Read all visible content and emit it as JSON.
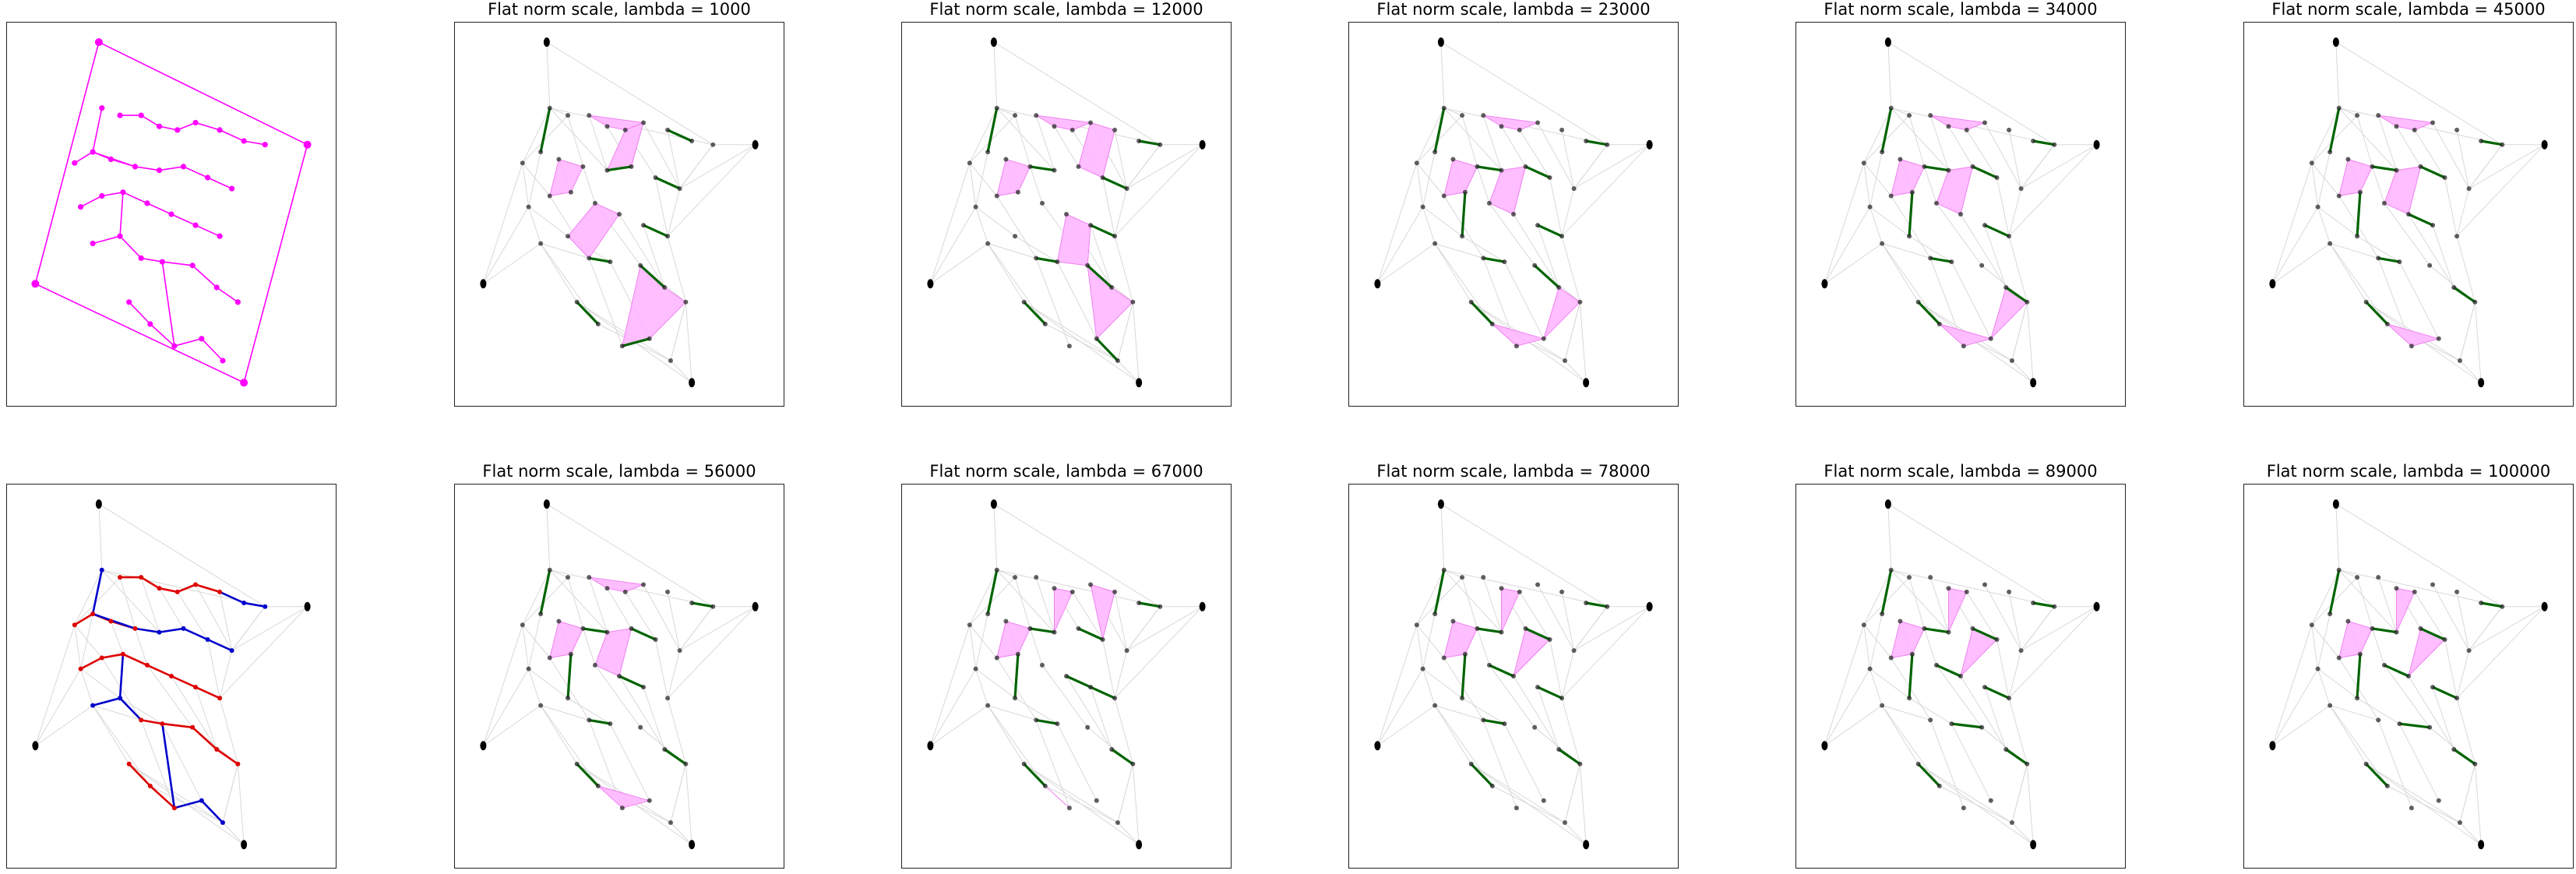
{
  "figure": {
    "layout": "2 rows x 6 columns of small multiples",
    "grid": false
  },
  "colors": {
    "outline": "#ff00ff",
    "fill": "#ffb3ff",
    "tree_edge": "#006400",
    "mesh": "#d9d9d9",
    "vertex": "#2b2b2b",
    "red_path": "#dd0000",
    "blue_path": "#0000cc"
  },
  "panels": [
    {
      "id": "input",
      "title": "",
      "style": "input"
    },
    {
      "id": "l1000",
      "title": "Flat norm scale, lambda = 1000",
      "style": "result",
      "lambda": 1000
    },
    {
      "id": "l12000",
      "title": "Flat norm scale, lambda = 12000",
      "style": "result",
      "lambda": 12000
    },
    {
      "id": "l23000",
      "title": "Flat norm scale, lambda = 23000",
      "style": "result",
      "lambda": 23000
    },
    {
      "id": "l34000",
      "title": "Flat norm scale, lambda = 34000",
      "style": "result",
      "lambda": 34000
    },
    {
      "id": "l45000",
      "title": "Flat norm scale, lambda = 45000",
      "style": "result",
      "lambda": 45000
    },
    {
      "id": "paths",
      "title": "",
      "style": "paths"
    },
    {
      "id": "l56000",
      "title": "Flat norm scale, lambda = 56000",
      "style": "result",
      "lambda": 56000
    },
    {
      "id": "l67000",
      "title": "Flat norm scale, lambda = 67000",
      "style": "result",
      "lambda": 67000
    },
    {
      "id": "l78000",
      "title": "Flat norm scale, lambda = 78000",
      "style": "result",
      "lambda": 78000
    },
    {
      "id": "l89000",
      "title": "Flat norm scale, lambda = 89000",
      "style": "result",
      "lambda": 89000
    },
    {
      "id": "l100000",
      "title": "Flat norm scale, lambda = 100000",
      "style": "result",
      "lambda": 100000
    }
  ],
  "chart_data": {
    "type": "scatter",
    "title": "",
    "lambdas": [
      1000,
      12000,
      23000,
      34000,
      45000,
      56000,
      67000,
      78000,
      89000,
      100000
    ],
    "corner_points": [
      [
        0.26,
        0.03
      ],
      [
        0.95,
        0.31
      ],
      [
        0.74,
        0.96
      ],
      [
        0.05,
        0.69
      ]
    ],
    "network_points": [
      [
        0.27,
        0.21
      ],
      [
        0.33,
        0.23
      ],
      [
        0.4,
        0.23
      ],
      [
        0.46,
        0.26
      ],
      [
        0.52,
        0.27
      ],
      [
        0.58,
        0.25
      ],
      [
        0.66,
        0.27
      ],
      [
        0.74,
        0.3
      ],
      [
        0.81,
        0.31
      ],
      [
        0.18,
        0.36
      ],
      [
        0.24,
        0.33
      ],
      [
        0.3,
        0.35
      ],
      [
        0.38,
        0.37
      ],
      [
        0.46,
        0.38
      ],
      [
        0.54,
        0.37
      ],
      [
        0.62,
        0.4
      ],
      [
        0.7,
        0.43
      ],
      [
        0.2,
        0.48
      ],
      [
        0.27,
        0.45
      ],
      [
        0.34,
        0.44
      ],
      [
        0.42,
        0.47
      ],
      [
        0.5,
        0.5
      ],
      [
        0.58,
        0.53
      ],
      [
        0.66,
        0.56
      ],
      [
        0.24,
        0.58
      ],
      [
        0.33,
        0.56
      ],
      [
        0.4,
        0.62
      ],
      [
        0.47,
        0.63
      ],
      [
        0.57,
        0.64
      ],
      [
        0.65,
        0.7
      ],
      [
        0.72,
        0.74
      ],
      [
        0.36,
        0.74
      ],
      [
        0.43,
        0.8
      ],
      [
        0.51,
        0.86
      ],
      [
        0.6,
        0.84
      ],
      [
        0.67,
        0.9
      ]
    ],
    "red_edges": [
      [
        1,
        2
      ],
      [
        2,
        3
      ],
      [
        3,
        4
      ],
      [
        4,
        5
      ],
      [
        5,
        6
      ],
      [
        9,
        10
      ],
      [
        10,
        11
      ],
      [
        11,
        12
      ],
      [
        17,
        18
      ],
      [
        18,
        19
      ],
      [
        19,
        20
      ],
      [
        20,
        21
      ],
      [
        21,
        22
      ],
      [
        22,
        23
      ],
      [
        26,
        27
      ],
      [
        27,
        28
      ],
      [
        31,
        32
      ],
      [
        32,
        33
      ],
      [
        28,
        29
      ],
      [
        29,
        30
      ]
    ],
    "blue_edges": [
      [
        0,
        10
      ],
      [
        10,
        12
      ],
      [
        12,
        13
      ],
      [
        13,
        14
      ],
      [
        14,
        15
      ],
      [
        15,
        16
      ],
      [
        6,
        7
      ],
      [
        7,
        8
      ],
      [
        19,
        25
      ],
      [
        25,
        24
      ],
      [
        25,
        26
      ],
      [
        27,
        33
      ],
      [
        33,
        34
      ],
      [
        34,
        35
      ]
    ],
    "green_edge_sets": [
      [
        [
          0,
          10
        ],
        [
          13,
          14
        ],
        [
          15,
          16
        ],
        [
          6,
          7
        ],
        [
          22,
          23
        ],
        [
          26,
          27
        ],
        [
          31,
          32
        ],
        [
          33,
          34
        ],
        [
          28,
          29
        ]
      ],
      [
        [
          0,
          10
        ],
        [
          12,
          13
        ],
        [
          15,
          16
        ],
        [
          7,
          8
        ],
        [
          22,
          23
        ],
        [
          26,
          27
        ],
        [
          31,
          32
        ],
        [
          34,
          35
        ],
        [
          28,
          29
        ]
      ],
      [
        [
          0,
          10
        ],
        [
          12,
          13
        ],
        [
          14,
          15
        ],
        [
          7,
          8
        ],
        [
          19,
          25
        ],
        [
          22,
          23
        ],
        [
          26,
          27
        ],
        [
          31,
          32
        ],
        [
          28,
          29
        ]
      ],
      [
        [
          0,
          10
        ],
        [
          12,
          13
        ],
        [
          14,
          15
        ],
        [
          7,
          8
        ],
        [
          19,
          25
        ],
        [
          22,
          23
        ],
        [
          26,
          27
        ],
        [
          31,
          32
        ],
        [
          29,
          30
        ]
      ],
      [
        [
          0,
          10
        ],
        [
          12,
          13
        ],
        [
          14,
          15
        ],
        [
          7,
          8
        ],
        [
          19,
          25
        ],
        [
          21,
          22
        ],
        [
          26,
          27
        ],
        [
          31,
          32
        ],
        [
          29,
          30
        ]
      ],
      [
        [
          0,
          10
        ],
        [
          12,
          13
        ],
        [
          14,
          15
        ],
        [
          7,
          8
        ],
        [
          19,
          25
        ],
        [
          21,
          22
        ],
        [
          26,
          27
        ],
        [
          31,
          32
        ],
        [
          29,
          30
        ]
      ],
      [
        [
          0,
          10
        ],
        [
          12,
          13
        ],
        [
          14,
          15
        ],
        [
          7,
          8
        ],
        [
          19,
          25
        ],
        [
          21,
          22
        ],
        [
          22,
          23
        ],
        [
          26,
          27
        ],
        [
          31,
          32
        ],
        [
          29,
          30
        ]
      ],
      [
        [
          0,
          10
        ],
        [
          12,
          13
        ],
        [
          14,
          15
        ],
        [
          7,
          8
        ],
        [
          19,
          25
        ],
        [
          20,
          21
        ],
        [
          22,
          23
        ],
        [
          26,
          27
        ],
        [
          31,
          32
        ],
        [
          29,
          30
        ]
      ],
      [
        [
          0,
          10
        ],
        [
          12,
          13
        ],
        [
          14,
          15
        ],
        [
          7,
          8
        ],
        [
          19,
          25
        ],
        [
          20,
          21
        ],
        [
          22,
          23
        ],
        [
          27,
          28
        ],
        [
          31,
          32
        ],
        [
          29,
          30
        ]
      ],
      [
        [
          0,
          10
        ],
        [
          12,
          13
        ],
        [
          14,
          15
        ],
        [
          7,
          8
        ],
        [
          19,
          25
        ],
        [
          20,
          21
        ],
        [
          22,
          23
        ],
        [
          27,
          28
        ],
        [
          31,
          32
        ],
        [
          29,
          30
        ]
      ]
    ],
    "pink_region_sets": [
      [
        [
          2,
          3,
          4,
          5
        ],
        [
          4,
          5,
          14,
          13
        ],
        [
          11,
          12,
          19,
          18
        ],
        [
          20,
          21,
          26,
          25
        ],
        [
          28,
          29,
          30,
          34,
          33
        ]
      ],
      [
        [
          2,
          3,
          4,
          5
        ],
        [
          5,
          6,
          15,
          14
        ],
        [
          11,
          12,
          19,
          18
        ],
        [
          21,
          22,
          28,
          27
        ],
        [
          28,
          29,
          30,
          34
        ]
      ],
      [
        [
          2,
          3,
          4,
          5
        ],
        [
          13,
          14,
          21,
          20
        ],
        [
          11,
          12,
          19,
          18
        ],
        [
          32,
          33,
          34
        ],
        [
          29,
          30,
          34
        ]
      ],
      [
        [
          2,
          3,
          4,
          5
        ],
        [
          13,
          14,
          21,
          20
        ],
        [
          11,
          12,
          19,
          18
        ],
        [
          32,
          33,
          34
        ],
        [
          29,
          30,
          34
        ]
      ],
      [
        [
          2,
          3,
          4,
          5
        ],
        [
          13,
          14,
          21,
          20
        ],
        [
          11,
          12,
          19,
          18
        ],
        [
          32,
          33,
          34
        ]
      ],
      [
        [
          2,
          3,
          4,
          5
        ],
        [
          13,
          14,
          21,
          20
        ],
        [
          11,
          12,
          19,
          18
        ],
        [
          32,
          33,
          34
        ]
      ],
      [
        [
          3,
          4,
          13
        ],
        [
          5,
          6,
          15
        ],
        [
          11,
          12,
          19,
          18
        ],
        [
          32,
          33
        ]
      ],
      [
        [
          3,
          4,
          13
        ],
        [
          14,
          15,
          21
        ],
        [
          11,
          12,
          19,
          18
        ]
      ],
      [
        [
          3,
          4,
          13
        ],
        [
          14,
          15,
          21
        ],
        [
          11,
          12,
          19,
          18
        ]
      ],
      [
        [
          3,
          4,
          13
        ],
        [
          14,
          15,
          21
        ],
        [
          11,
          12,
          19,
          18
        ]
      ]
    ],
    "mesh_edges": [
      [
        0,
        9
      ],
      [
        0,
        1
      ],
      [
        1,
        9
      ],
      [
        9,
        17
      ],
      [
        17,
        24
      ],
      [
        24,
        31
      ],
      [
        31,
        35
      ],
      [
        35,
        30
      ],
      [
        30,
        23
      ],
      [
        23,
        16
      ],
      [
        16,
        8
      ],
      [
        8,
        0
      ],
      [
        0,
        13
      ],
      [
        1,
        12
      ],
      [
        9,
        18
      ],
      [
        17,
        25
      ],
      [
        24,
        32
      ],
      [
        2,
        13
      ],
      [
        3,
        14
      ],
      [
        4,
        15
      ],
      [
        11,
        19
      ],
      [
        12,
        20
      ],
      [
        18,
        26
      ],
      [
        25,
        27
      ],
      [
        26,
        33
      ],
      [
        27,
        34
      ],
      [
        20,
        28
      ],
      [
        21,
        29
      ],
      [
        22,
        29
      ],
      [
        6,
        16
      ],
      [
        5,
        16
      ],
      [
        15,
        23
      ],
      [
        28,
        30
      ],
      [
        32,
        35
      ],
      [
        10,
        17
      ],
      [
        24,
        26
      ],
      [
        30,
        35
      ],
      [
        8,
        16
      ]
    ]
  }
}
